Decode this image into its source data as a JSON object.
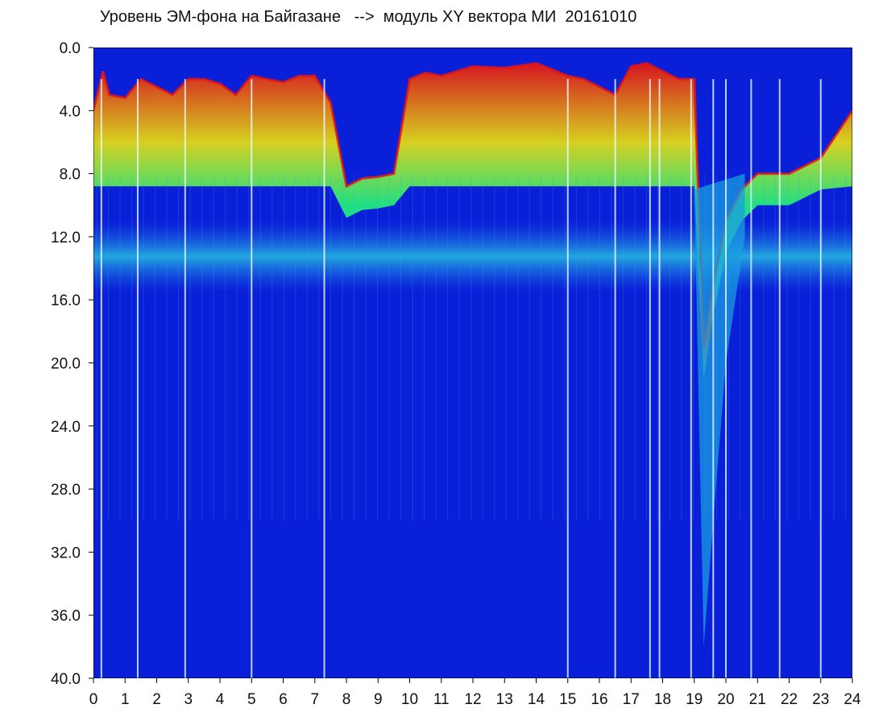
{
  "title": "Уровень ЭМ-фона на Байгазане   -->  модуль XY вектора МИ  20161010",
  "chart_data": {
    "type": "heatmap",
    "title": "Уровень ЭМ-фона на Байгазане   -->  модуль XY вектора МИ  20161010",
    "xlabel": "",
    "ylabel": "",
    "xlim": [
      0,
      24
    ],
    "ylim": [
      40.0,
      0.0
    ],
    "x_ticks": [
      "0",
      "1",
      "2",
      "3",
      "4",
      "5",
      "6",
      "7",
      "8",
      "9",
      "10",
      "11",
      "12",
      "13",
      "14",
      "15",
      "16",
      "17",
      "18",
      "19",
      "20",
      "21",
      "22",
      "23",
      "24"
    ],
    "y_ticks": [
      "0.0",
      "4.0",
      "8.0",
      "12.0",
      "16.0",
      "20.0",
      "24.0",
      "28.0",
      "32.0",
      "36.0",
      "40.0"
    ],
    "y_tick_values": [
      0,
      4,
      8,
      12,
      16,
      20,
      24,
      28,
      32,
      36,
      40
    ],
    "grid": false,
    "colors": {
      "background": "#0a1fd8",
      "low": "#0c2be6",
      "mid": "#1ecfd8",
      "high_green": "#22f07a",
      "high_yellow": "#d8f020",
      "peak": "#e81410"
    },
    "upper_edge_profile": {
      "x": [
        0.0,
        0.3,
        0.5,
        1.0,
        1.5,
        2.0,
        2.5,
        3.0,
        3.5,
        4.0,
        4.5,
        5.0,
        5.5,
        6.0,
        6.5,
        7.0,
        7.5,
        8.0,
        8.5,
        9.0,
        9.5,
        10.0,
        10.5,
        11.0,
        12.0,
        13.0,
        14.0,
        15.0,
        15.5,
        16.0,
        16.5,
        17.0,
        17.5,
        18.0,
        18.5,
        19.0,
        19.3,
        19.6,
        20.0,
        20.5,
        21.0,
        22.0,
        23.0,
        24.0
      ],
      "y": [
        4.0,
        1.5,
        3.0,
        3.2,
        2.0,
        2.5,
        3.0,
        2.0,
        2.0,
        2.3,
        3.0,
        1.8,
        2.0,
        2.2,
        1.8,
        1.8,
        3.5,
        8.8,
        8.3,
        8.2,
        8.0,
        2.0,
        1.6,
        1.8,
        1.2,
        1.3,
        1.0,
        1.8,
        2.0,
        2.5,
        3.0,
        1.2,
        1.0,
        1.5,
        2.0,
        2.0,
        19.0,
        15.0,
        11.0,
        9.0,
        8.0,
        8.0,
        7.0,
        4.0
      ]
    },
    "background_blue_band_top": 8.8,
    "cyan_band": [
      12.0,
      14.5
    ]
  }
}
